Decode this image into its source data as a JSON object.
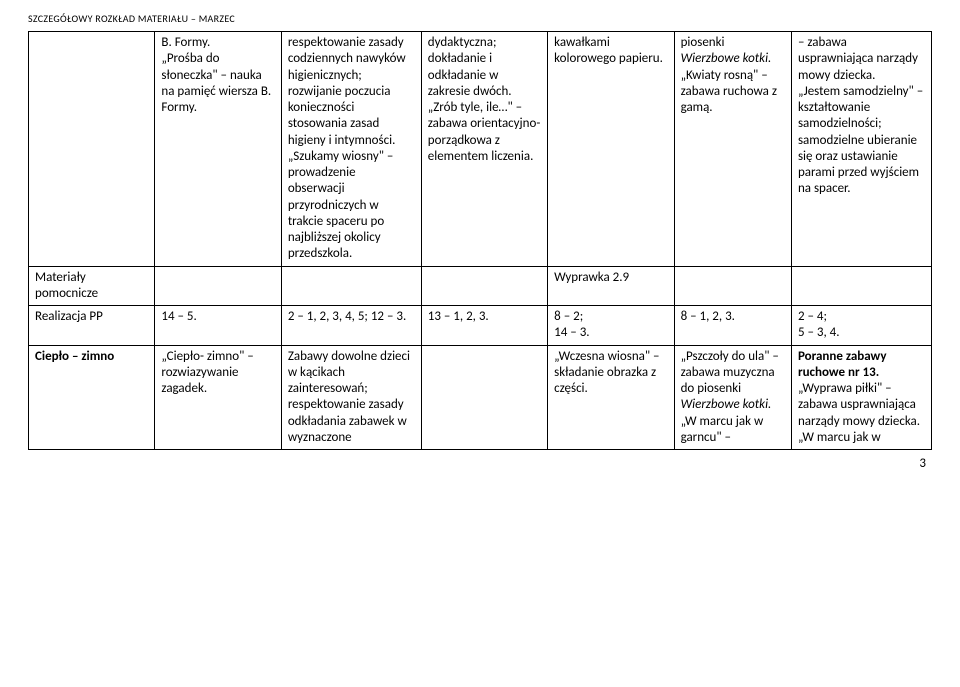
{
  "header": "SZCZEGÓŁOWY ROZKŁAD MATERIAŁU – MARZEC",
  "row1": {
    "c1a": "B. Formy.",
    "c1b": "„Prośba do słoneczka\" – nauka na pamięć wiersza B. Formy.",
    "c2a": "respektowanie zasady codziennych nawyków higienicznych; rozwijanie poczucia konieczności stosowania zasad higieny i intymności.",
    "c2b": "„Szukamy wiosny\" – prowadzenie obserwacji przyrodniczych w trakcie spaceru po najbliższej okolicy przedszkola.",
    "c3a": "dydaktyczna; dokładanie i odkładanie w zakresie dwóch.",
    "c3b": "„Zrób tyle, ile…\" – zabawa orientacyjno-porządkowa z elementem liczenia.",
    "c4": "kawałkami kolorowego papieru.",
    "c5a": "piosenki ",
    "c5a_it": "Wierzbowe kotki.",
    "c5b": "„Kwiaty rosną\" – zabawa ruchowa z gamą.",
    "c6a": "– zabawa usprawniająca narządy mowy dziecka.",
    "c6b": "„Jestem samodzielny\" – kształtowanie samodzielności; samodzielne ubieranie się oraz ustawianie parami przed wyjściem na spacer."
  },
  "row2": {
    "label": "Materiały pomocnicze",
    "c4": "Wyprawka 2.9"
  },
  "row3": {
    "label": "Realizacja PP",
    "c1": "14 – 5.",
    "c2": "2 – 1, 2, 3, 4, 5; 12 – 3.",
    "c3": "13 – 1, 2, 3.",
    "c4": "8 – 2;\n14 – 3.",
    "c5": "8 – 1, 2, 3.",
    "c6": "2 – 4;\n5 – 3, 4."
  },
  "row4": {
    "label": "Ciepło – zimno",
    "c1": "„Ciepło- zimno\" – rozwiazywanie zagadek.",
    "c2": "Zabawy dowolne dzieci w kącikach zainteresowań; respektowanie zasady odkładania zabawek w wyznaczone",
    "c4": "„Wczesna wiosna\" – składanie obrazka z części.",
    "c5a": "„Pszczoły do ula\" – zabawa muzyczna do piosenki ",
    "c5a_it": "Wierzbowe kotki.",
    "c5b": "„W marcu jak w garncu\" –",
    "c6a": "Poranne zabawy ruchowe nr 13.",
    "c6b": "„Wyprawa piłki\" – zabawa usprawniająca narządy mowy dziecka.",
    "c6c": "„W marcu jak w"
  },
  "pagenum": "3"
}
